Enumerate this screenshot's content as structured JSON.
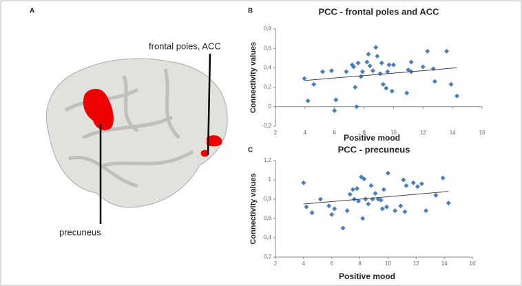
{
  "panel_labels": [
    "A",
    "B",
    "C"
  ],
  "brain": {
    "labels": [
      "frontal poles, ACC",
      "precuneus"
    ]
  },
  "chart_data": [
    {
      "type": "scatter",
      "title": "PCC - frontal poles and ACC",
      "x_label": "Positive mood",
      "y_label": "Connectivity  values",
      "color": "#4a7ebb",
      "x": [
        3.96,
        4.2,
        4.6,
        5.2,
        5.8,
        6.0,
        6.1,
        6.8,
        7.2,
        7.3,
        7.4,
        7.5,
        7.6,
        7.8,
        7.9,
        8.2,
        8.3,
        8.4,
        8.6,
        8.8,
        8.9,
        9.1,
        9.2,
        9.3,
        9.5,
        9.6,
        9.7,
        9.9,
        10.0,
        10.9,
        11.0,
        11.2,
        11.2,
        12.0,
        12.3,
        12.7,
        12.8,
        13.6,
        13.9,
        14.3
      ],
      "values": [
        0.29,
        0.06,
        0.23,
        0.36,
        0.37,
        -0.04,
        0.07,
        0.36,
        0.43,
        0.41,
        0.2,
        0.0,
        0.45,
        0.31,
        0.36,
        0.46,
        0.54,
        0.42,
        0.37,
        0.61,
        0.52,
        0.34,
        0.45,
        0.23,
        0.19,
        0.36,
        0.43,
        0.16,
        0.43,
        0.14,
        0.38,
        0.36,
        0.46,
        0.41,
        0.57,
        0.39,
        0.26,
        0.57,
        0.23,
        0.11
      ],
      "trendline": {
        "x": [
          4,
          14.3
        ],
        "values": [
          0.27,
          0.4
        ]
      },
      "xlim": [
        2,
        16
      ],
      "xticks": [
        2,
        4,
        6,
        8,
        10,
        12,
        14,
        16
      ],
      "ylim": [
        -0.2,
        0.8
      ],
      "yticks": [
        {
          "value": -0.2,
          "label": "-0,2"
        },
        0,
        {
          "value": 0.2,
          "label": "0,2"
        },
        {
          "value": 0.4,
          "label": "0,4"
        },
        {
          "value": 0.6,
          "label": "0,6"
        },
        {
          "value": 0.8,
          "label": "0,8"
        }
      ]
    },
    {
      "type": "scatter",
      "title": "PCC - precuneus",
      "x_label": "Positive mood",
      "y_label": "Connectivity  values",
      "color": "#4a7ebb",
      "x": [
        4.0,
        4.2,
        4.6,
        5.2,
        5.8,
        6.0,
        6.2,
        6.8,
        7.1,
        7.3,
        7.5,
        7.6,
        7.8,
        7.9,
        8.1,
        8.2,
        8.3,
        8.4,
        8.6,
        8.8,
        8.9,
        9.1,
        9.3,
        9.5,
        9.6,
        9.7,
        9.9,
        10.0,
        10.5,
        10.9,
        11.1,
        11.2,
        11.3,
        11.8,
        12.1,
        12.4,
        12.7,
        13.4,
        13.9,
        14.3
      ],
      "values": [
        0.97,
        0.72,
        0.66,
        0.8,
        0.73,
        0.64,
        0.7,
        0.5,
        0.68,
        0.85,
        0.9,
        0.8,
        0.91,
        0.78,
        1.03,
        0.6,
        1.01,
        0.8,
        0.75,
        0.94,
        0.8,
        0.86,
        0.8,
        0.79,
        0.7,
        0.9,
        0.72,
        1.07,
        0.68,
        0.73,
        1.0,
        0.67,
        0.94,
        0.97,
        0.93,
        0.96,
        0.68,
        0.84,
        1.02,
        0.76
      ],
      "trendline": {
        "x": [
          4,
          14.3
        ],
        "values": [
          0.75,
          0.88
        ]
      },
      "xlim": [
        2,
        16
      ],
      "xticks": [
        2,
        4,
        6,
        8,
        10,
        12,
        14,
        16
      ],
      "ylim": [
        0.2,
        1.2
      ],
      "yticks": [
        {
          "value": 0.2,
          "label": "0,2"
        },
        {
          "value": 0.4,
          "label": "0,4"
        },
        {
          "value": 0.6,
          "label": "0,6"
        },
        {
          "value": 0.8,
          "label": "0,8"
        },
        1,
        {
          "value": 1.2,
          "label": "1,2"
        }
      ]
    }
  ]
}
